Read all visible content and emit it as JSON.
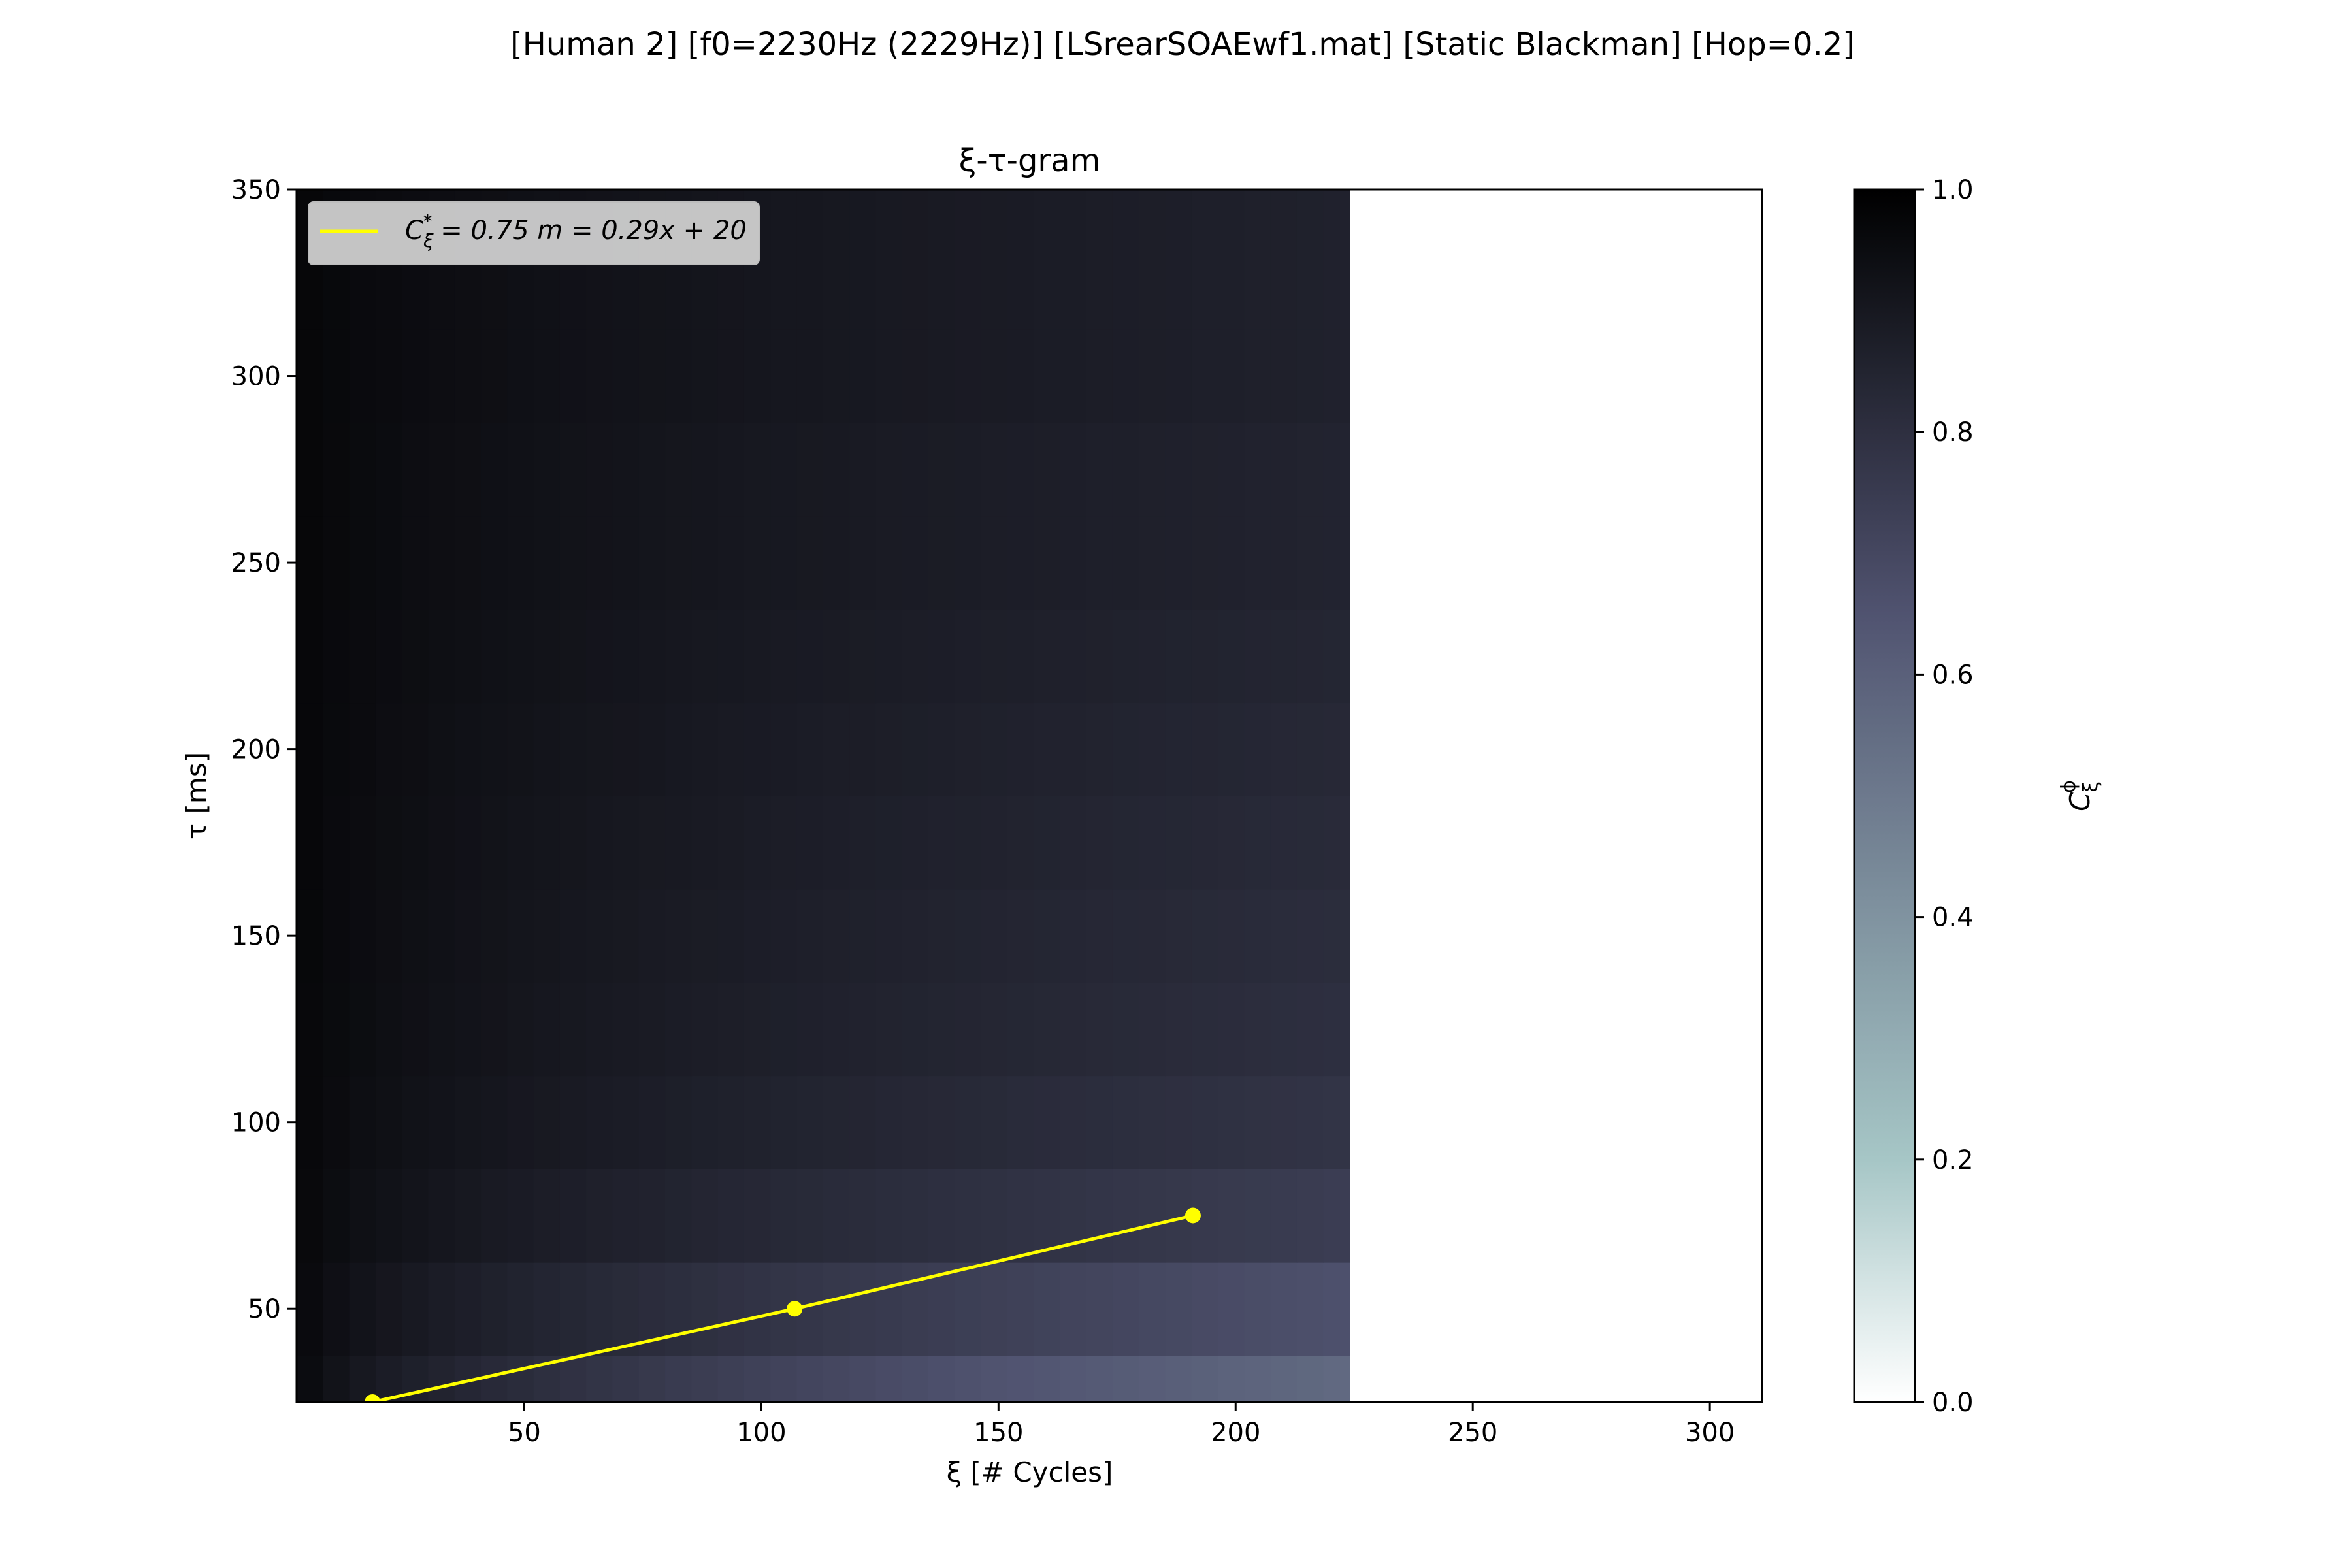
{
  "figure": {
    "suptitle": "[Human 2]   [f0=2230Hz (2229Hz)]   [LSrearSOAEwf1.mat]   [Static Blackman]   [Hop=0.2]"
  },
  "chart_data": {
    "type": "heatmap",
    "title": "ξ-τ-gram",
    "xlabel": "ξ [# Cycles]",
    "ylabel": "τ [ms]",
    "xlim": [
      2,
      311
    ],
    "ylim": [
      25,
      350
    ],
    "xticks": [
      50,
      100,
      150,
      200,
      250,
      300
    ],
    "yticks": [
      50,
      100,
      150,
      200,
      250,
      300,
      350
    ],
    "colorbar": {
      "label": "C_ξ^φ",
      "range": [
        0,
        1
      ],
      "ticks": [
        0.0,
        0.2,
        0.4,
        0.6,
        0.8,
        1.0
      ],
      "tick_labels": [
        "0.0",
        "0.2",
        "0.4",
        "0.6",
        "0.8",
        "1.0"
      ],
      "colormap": "bone_r",
      "colors": [
        "#ffffff",
        "#a6c6c6",
        "#505370",
        "#000000"
      ]
    },
    "heatmap": {
      "xi_min": 2,
      "xi_max": 224,
      "columns": 40,
      "tau_rows": [
        25,
        50,
        75,
        100,
        125,
        150,
        175,
        200,
        225,
        250,
        275,
        300,
        325,
        350
      ],
      "tau_row_height": 25,
      "coherence_at_xi_max": [
        0.56,
        0.66,
        0.74,
        0.78,
        0.8,
        0.81,
        0.82,
        0.83,
        0.84,
        0.85,
        0.85,
        0.86,
        0.86,
        0.86
      ],
      "coherence_at_xi_min": 0.98,
      "decay_shape": 0.6,
      "empty_region_xi": [
        224,
        311
      ],
      "empty_region_note": "no data"
    },
    "series": [
      {
        "name": "C_ξ* = 0.75  m = 0.29x + 20",
        "color": "#ffff00",
        "points": [
          {
            "x": 18,
            "y": 25
          },
          {
            "x": 107,
            "y": 50
          },
          {
            "x": 191,
            "y": 75
          }
        ]
      }
    ],
    "legend": {
      "position": "upper-left",
      "label_prefix": "C",
      "label_sub": "ξ",
      "label_sup": "*",
      "label_rest": " = 0.75  m = 0.29x + 20"
    }
  }
}
